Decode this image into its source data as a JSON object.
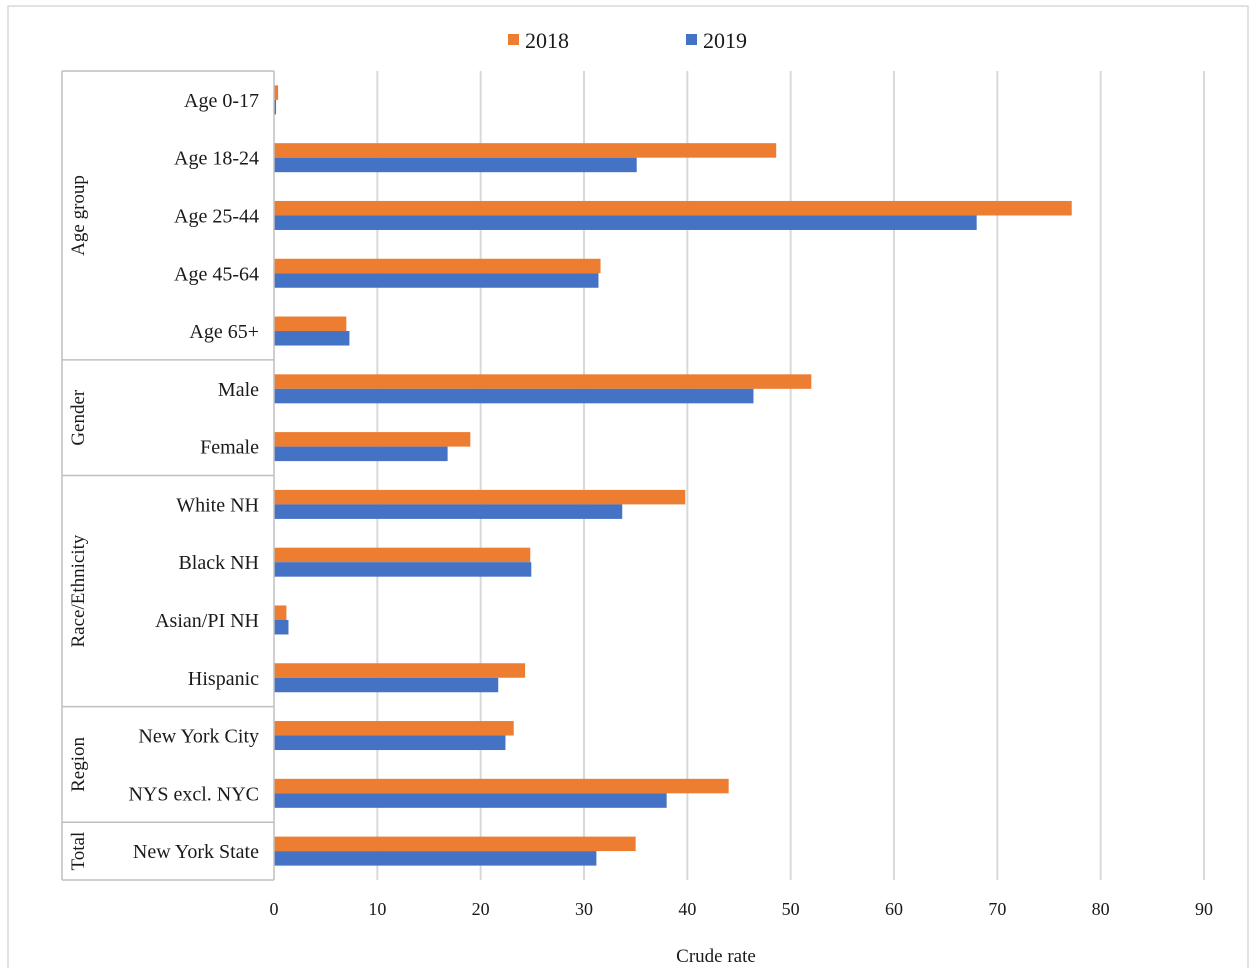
{
  "chart_data": {
    "type": "bar",
    "orientation": "horizontal",
    "title": "",
    "xlabel": "Crude rate",
    "ylabel": "",
    "xlim": [
      0,
      90
    ],
    "x_ticks": [
      0,
      10,
      20,
      30,
      40,
      50,
      60,
      70,
      80,
      90
    ],
    "grid": true,
    "legend_position": "top-center",
    "groups": [
      {
        "label": "Age group",
        "categories": [
          "Age 0-17",
          "Age 18-24",
          "Age 25-44",
          "Age 45-64",
          "Age 65+"
        ]
      },
      {
        "label": "Gender",
        "categories": [
          "Male",
          "Female"
        ]
      },
      {
        "label": "Race/Ethnicity",
        "categories": [
          "White NH",
          "Black NH",
          "Asian/PI NH",
          "Hispanic"
        ]
      },
      {
        "label": "Region",
        "categories": [
          "New York City",
          "NYS excl. NYC"
        ]
      },
      {
        "label": "Total",
        "categories": [
          "New York State"
        ]
      }
    ],
    "categories": [
      "Age 0-17",
      "Age 18-24",
      "Age 25-44",
      "Age 45-64",
      "Age 65+",
      "Male",
      "Female",
      "White NH",
      "Black NH",
      "Asian/PI NH",
      "Hispanic",
      "New York City",
      "NYS excl. NYC",
      "New York State"
    ],
    "series": [
      {
        "name": "2018",
        "color": "#ED7D31",
        "values": [
          0.4,
          48.6,
          77.2,
          31.6,
          7.0,
          52.0,
          19.0,
          39.8,
          24.8,
          1.2,
          24.3,
          23.2,
          44.0,
          35.0
        ]
      },
      {
        "name": "2019",
        "color": "#4472C4",
        "values": [
          0.2,
          35.1,
          68.0,
          31.4,
          7.3,
          46.4,
          16.8,
          33.7,
          24.9,
          1.4,
          21.7,
          22.4,
          38.0,
          31.2
        ]
      }
    ]
  }
}
